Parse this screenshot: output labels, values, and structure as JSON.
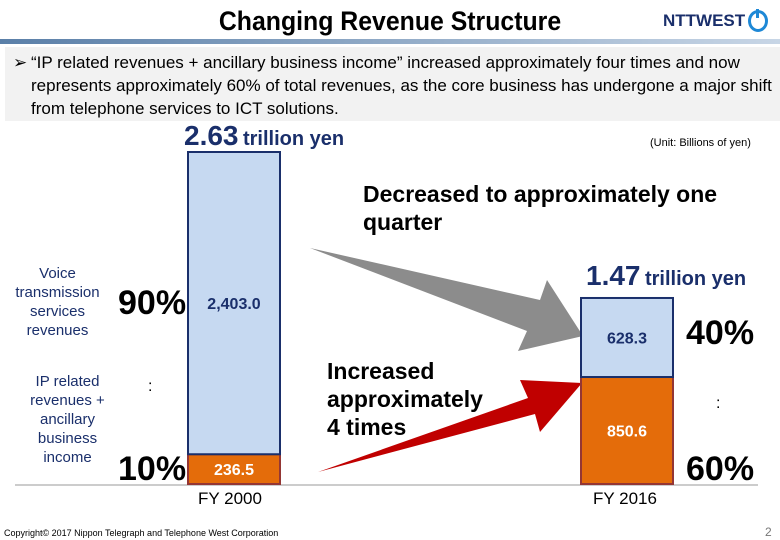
{
  "header": {
    "title": "Changing Revenue Structure",
    "logo_text": "NTTWEST"
  },
  "bullet": {
    "marker": "➢",
    "text": "“IP related revenues + ancillary business income” increased approximately four times and now represents approximately 60% of total revenues, as the core business has undergone a major shift from telephone services to ICT solutions."
  },
  "unit_note": "(Unit: Billions of yen)",
  "totals": [
    {
      "value": "2.63",
      "unit": "trillion yen"
    },
    {
      "value": "1.47",
      "unit": "trillion yen"
    }
  ],
  "annotations": {
    "decrease": "Decreased to approximately one quarter",
    "increase": "Increased approximately 4 times"
  },
  "side_labels": {
    "voice": "Voice transmission services revenues",
    "ip": "IP related revenues + ancillary business income",
    "colon": ":"
  },
  "percentages": {
    "fy2000_voice": "90%",
    "fy2000_ip": "10%",
    "fy2016_voice": "40%",
    "fy2016_ip": "60%"
  },
  "colors": {
    "voice": "#c6d9f1",
    "voice_border": "#1a2f6b",
    "ip": "#e46c0a",
    "ip_border": "#943634",
    "gray_arrow": "#8c8c8c",
    "red_arrow": "#c00000"
  },
  "chart_data": {
    "type": "bar",
    "stacked": true,
    "categories": [
      "FY 2000",
      "FY 2016"
    ],
    "series": [
      {
        "name": "IP related revenues + ancillary business income",
        "values": [
          236.5,
          850.6
        ],
        "labels": [
          "236.5",
          "850.6"
        ]
      },
      {
        "name": "Voice transmission services revenues",
        "values": [
          2403.0,
          628.3
        ],
        "labels": [
          "2,403.0",
          "628.3"
        ]
      }
    ],
    "ylabel": "(Unit: Billions of yen)",
    "grid": false
  },
  "footer": {
    "copyright": "Copyright© 2017 Nippon Telegraph and Telephone West Corporation",
    "page": "2"
  }
}
